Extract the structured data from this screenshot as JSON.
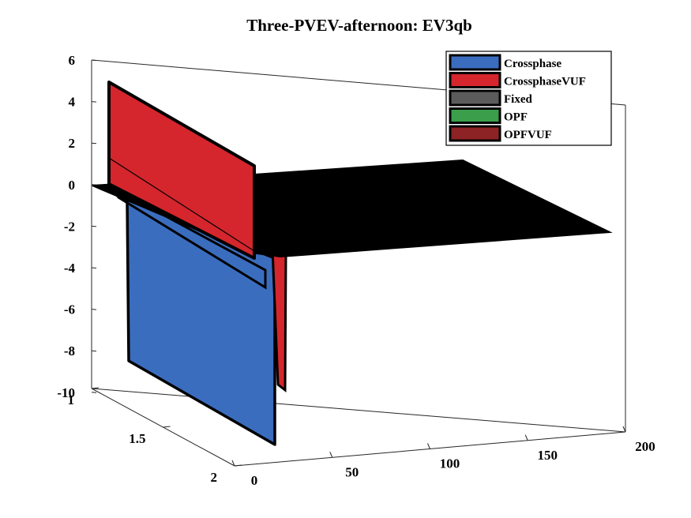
{
  "chart_data": {
    "type": "3d-bar",
    "title": "Three-PVEV-afternoon: EV3qb",
    "xlabel": "",
    "ylabel": "",
    "zlabel": "",
    "xlim": [
      0,
      200
    ],
    "ylim": [
      1,
      2
    ],
    "zlim": [
      -10,
      6
    ],
    "x_ticks": [
      "0",
      "50",
      "100",
      "150",
      "200"
    ],
    "y_ticks": [
      "1",
      "1.5",
      "2"
    ],
    "z_ticks": [
      "6",
      "4",
      "2",
      "0",
      "-2",
      "-4",
      "-6",
      "-8",
      "-10"
    ],
    "grid": false,
    "legend_position": "top-right",
    "series": [
      {
        "name": "Crossphase",
        "color": "#3b6dbf",
        "value_min": -9.8,
        "value_max": 0,
        "index": 1
      },
      {
        "name": "CrossphaseVUF",
        "color": "#d4262c",
        "value_min": -2.2,
        "value_max": 5.2,
        "index": 2
      },
      {
        "name": "Fixed",
        "color": "#5b5b5b",
        "value_min": 0,
        "value_max": 0,
        "index": 3
      },
      {
        "name": "OPF",
        "color": "#3a9e4a",
        "value_min": 0,
        "value_max": 0,
        "index": 4
      },
      {
        "name": "OPFVUF",
        "color": "#8e2326",
        "value_min": 0,
        "value_max": 0,
        "index": 5
      }
    ]
  }
}
